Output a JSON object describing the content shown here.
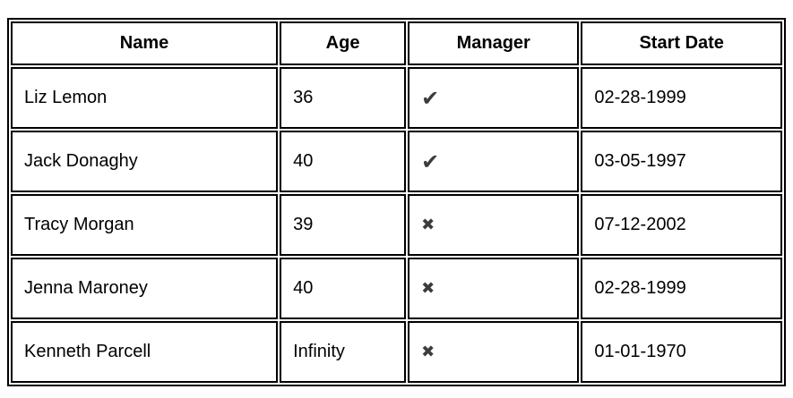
{
  "table": {
    "columns": [
      {
        "label": "Name"
      },
      {
        "label": "Age"
      },
      {
        "label": "Manager"
      },
      {
        "label": "Start Date"
      }
    ],
    "icons": {
      "check": "✔",
      "cross": "✖",
      "color": "#3c3c3c"
    },
    "border_color": "#000000",
    "rows": [
      {
        "name": "Liz Lemon",
        "age": "36",
        "manager": true,
        "manager_glyph": "✔",
        "start_date": "02-28-1999"
      },
      {
        "name": "Jack Donaghy",
        "age": "40",
        "manager": true,
        "manager_glyph": "✔",
        "start_date": "03-05-1997"
      },
      {
        "name": "Tracy Morgan",
        "age": "39",
        "manager": false,
        "manager_glyph": "✖",
        "start_date": "07-12-2002"
      },
      {
        "name": "Jenna Maroney",
        "age": "40",
        "manager": false,
        "manager_glyph": "✖",
        "start_date": "02-28-1999"
      },
      {
        "name": "Kenneth Parcell",
        "age": "Infinity",
        "manager": false,
        "manager_glyph": "✖",
        "start_date": "01-01-1970"
      }
    ]
  }
}
